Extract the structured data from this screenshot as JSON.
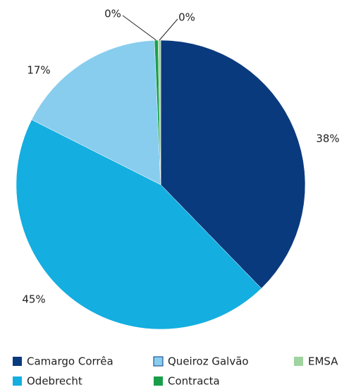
{
  "chart_data": {
    "type": "pie",
    "categories": [
      "Camargo Corrêa",
      "Odebrecht",
      "Queiroz Galvão",
      "Contracta",
      "EMSA"
    ],
    "values": [
      38,
      45,
      17,
      0.4,
      0.3
    ],
    "value_labels": [
      "38%",
      "45%",
      "17%",
      "0%",
      "0%"
    ],
    "colors": [
      "#0a3a7e",
      "#14aee0",
      "#88cdee",
      "#1a9e4a",
      "#9fd4a0"
    ]
  }
}
